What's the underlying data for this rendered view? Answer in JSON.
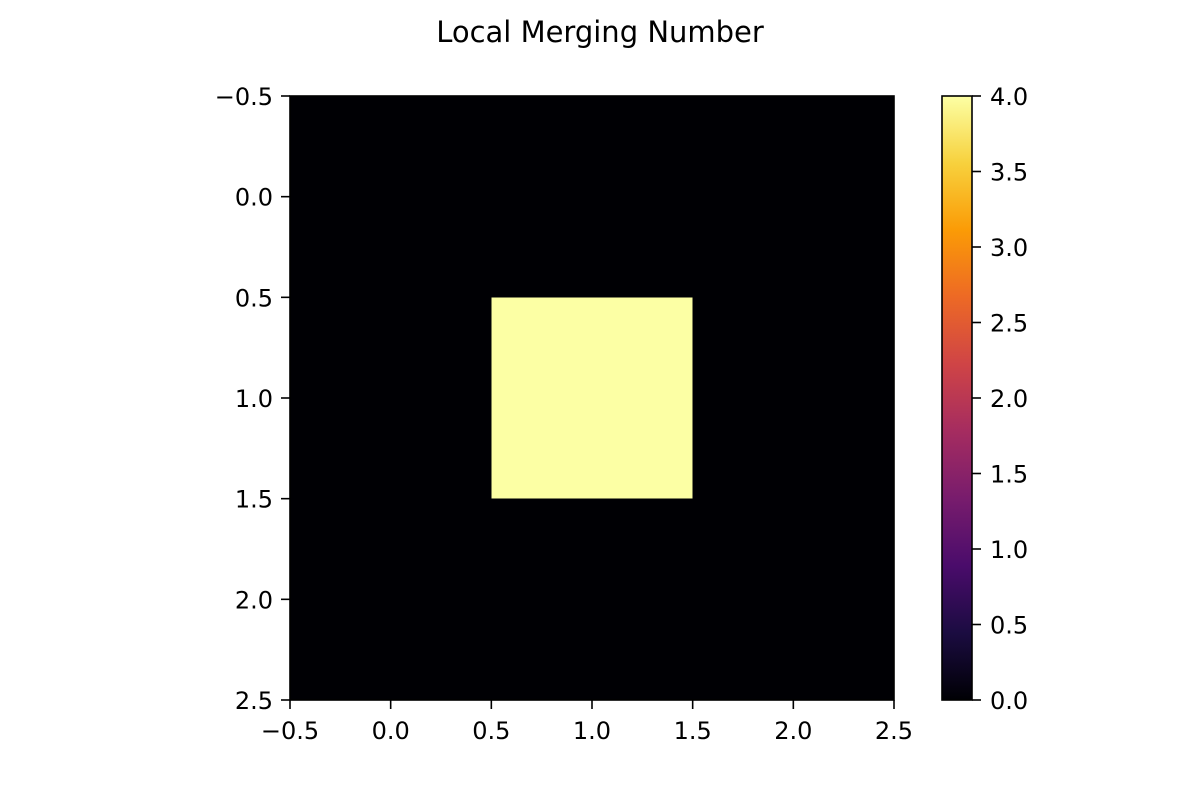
{
  "chart_data": {
    "type": "heatmap",
    "title": "Local Merging Number",
    "xlabel": "",
    "ylabel": "",
    "grid": false,
    "colormap": "inferno",
    "x_ticks": [
      "−0.5",
      "0.0",
      "0.5",
      "1.0",
      "1.5",
      "2.0",
      "2.5"
    ],
    "y_ticks": [
      "−0.5",
      "0.0",
      "0.5",
      "1.0",
      "1.5",
      "2.0",
      "2.5"
    ],
    "x_tick_values": [
      -0.5,
      0.0,
      0.5,
      1.0,
      1.5,
      2.0,
      2.5
    ],
    "y_tick_values": [
      -0.5,
      0.0,
      0.5,
      1.0,
      1.5,
      2.0,
      2.5
    ],
    "xlim": [
      -0.5,
      2.5
    ],
    "ylim": [
      2.5,
      -0.5
    ],
    "matrix": [
      [
        0,
        0,
        0
      ],
      [
        0,
        4,
        0
      ],
      [
        0,
        0,
        0
      ]
    ],
    "colorbar": {
      "range": [
        0,
        4
      ],
      "ticks": [
        "0.0",
        "0.5",
        "1.0",
        "1.5",
        "2.0",
        "2.5",
        "3.0",
        "3.5",
        "4.0"
      ],
      "tick_values": [
        0,
        0.5,
        1.0,
        1.5,
        2.0,
        2.5,
        3.0,
        3.5,
        4.0
      ],
      "colors": [
        "#000004",
        "#1b0c41",
        "#4a0c6b",
        "#781c6d",
        "#a52c60",
        "#cf4446",
        "#ed6925",
        "#fb9b06",
        "#f7d13d",
        "#fcffa4"
      ]
    }
  }
}
